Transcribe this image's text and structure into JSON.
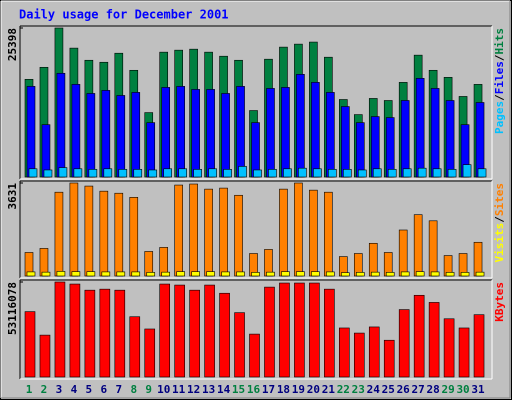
{
  "chart_data": [
    {
      "type": "bar",
      "title": "Daily usage for December 2001",
      "ylim": [
        0,
        25398
      ],
      "yticks": [
        25398
      ],
      "legend_separator": "/",
      "series": [
        {
          "name": "Hits",
          "color": "#008040",
          "values": [
            16650,
            18700,
            25398,
            21970,
            19900,
            19560,
            21100,
            18190,
            10980,
            21280,
            21620,
            21790,
            21280,
            20590,
            19900,
            11330,
            20080,
            22140,
            22650,
            23000,
            20420,
            13210,
            10640,
            13390,
            13040,
            16130,
            20770,
            18190,
            16990,
            13730,
            15790
          ]
        },
        {
          "name": "Files",
          "color": "#0000ff",
          "values": [
            15450,
            8920,
            17680,
            15790,
            14240,
            14760,
            13900,
            14420,
            9270,
            15270,
            15450,
            14930,
            14930,
            14240,
            15450,
            9270,
            15100,
            15270,
            17500,
            16130,
            14420,
            12010,
            9270,
            10300,
            10130,
            13040,
            16820,
            15100,
            13040,
            8920,
            12700
          ]
        },
        {
          "name": "Pages",
          "color": "#00c0ff",
          "values": [
            1400,
            1200,
            1600,
            1400,
            1300,
            1400,
            1300,
            1300,
            1200,
            1400,
            1400,
            1300,
            1400,
            1300,
            1800,
            1200,
            1300,
            1400,
            1500,
            1400,
            1300,
            1300,
            1200,
            1400,
            1300,
            1400,
            1500,
            1400,
            1300,
            2100,
            1400
          ]
        }
      ]
    },
    {
      "type": "bar",
      "ylim": [
        0,
        3631
      ],
      "yticks": [
        3631
      ],
      "legend_separator": "/",
      "series": [
        {
          "name": "Sites",
          "color": "#ff8000",
          "values": [
            918,
            1077,
            3272,
            3631,
            3511,
            3312,
            3232,
            3072,
            958,
            1117,
            3551,
            3591,
            3392,
            3432,
            3152,
            878,
            1037,
            3392,
            3631,
            3352,
            3272,
            758,
            878,
            1277,
            918,
            1796,
            2394,
            2155,
            798,
            878,
            1317
          ]
        },
        {
          "name": "Visits",
          "color": "#ffff00",
          "values": [
            160,
            150,
            180,
            170,
            170,
            160,
            160,
            160,
            140,
            150,
            170,
            170,
            170,
            160,
            160,
            140,
            150,
            170,
            170,
            170,
            160,
            130,
            140,
            150,
            140,
            160,
            170,
            160,
            140,
            140,
            150
          ]
        }
      ]
    },
    {
      "type": "bar",
      "ylim": [
        0,
        53116078
      ],
      "yticks": [
        53116078
      ],
      "categories": [
        "1",
        "2",
        "3",
        "4",
        "5",
        "6",
        "7",
        "8",
        "9",
        "10",
        "11",
        "12",
        "13",
        "14",
        "15",
        "16",
        "17",
        "18",
        "19",
        "20",
        "21",
        "22",
        "23",
        "24",
        "25",
        "26",
        "27",
        "28",
        "29",
        "30",
        "31"
      ],
      "category_colors": [
        "#008040",
        "#008040",
        "#000080",
        "#000080",
        "#000080",
        "#000080",
        "#000080",
        "#008040",
        "#008040",
        "#000080",
        "#000080",
        "#000080",
        "#000080",
        "#000080",
        "#008040",
        "#008040",
        "#000080",
        "#000080",
        "#000080",
        "#000080",
        "#000080",
        "#008040",
        "#008040",
        "#000080",
        "#000080",
        "#000080",
        "#000080",
        "#000080",
        "#008040",
        "#008040",
        "#000080"
      ],
      "series": [
        {
          "name": "KBytes",
          "color": "#ff0000",
          "values": [
            36553000,
            23417000,
            53116078,
            51974000,
            48547000,
            49118000,
            48547000,
            33697000,
            26844000,
            51974000,
            51403000,
            48547000,
            51403000,
            46834000,
            35982000,
            23988000,
            50260000,
            52545000,
            52545000,
            52545000,
            49118000,
            27415000,
            24559000,
            27986000,
            20561000,
            37695000,
            45691000,
            41693000,
            32555000,
            27415000,
            34840000
          ]
        }
      ]
    }
  ]
}
